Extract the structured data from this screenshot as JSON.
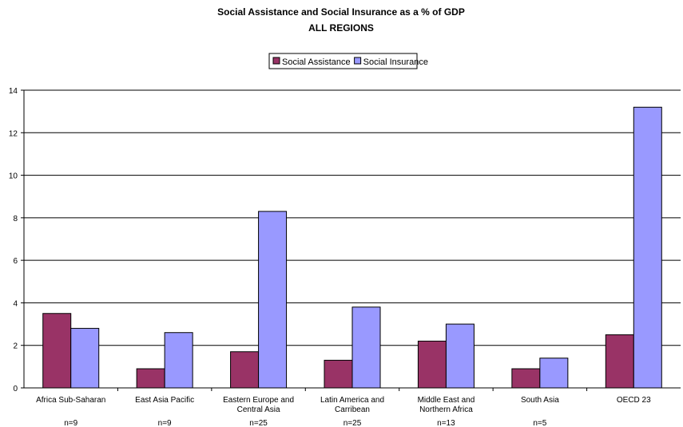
{
  "chart_data": {
    "type": "bar",
    "title": "Social Assistance and Social Insurance as a % of GDP",
    "subtitle": "ALL REGIONS",
    "categories": [
      [
        "Africa Sub-Saharan"
      ],
      [
        "East Asia Pacific"
      ],
      [
        "Eastern Europe and",
        "Central Asia"
      ],
      [
        "Latin America and",
        "Carribean"
      ],
      [
        "Middle East and",
        "Northern Africa"
      ],
      [
        "South Asia"
      ],
      [
        "OECD 23"
      ]
    ],
    "sample_sizes": [
      "n=9",
      "n=9",
      "n=25",
      "n=25",
      "n=13",
      "n=5",
      ""
    ],
    "series": [
      {
        "name": "Social Assistance",
        "color": "#993366",
        "values": [
          3.5,
          0.9,
          1.7,
          1.3,
          2.2,
          0.9,
          2.5
        ]
      },
      {
        "name": "Social Insurance",
        "color": "#9999ff",
        "values": [
          2.8,
          2.6,
          8.3,
          3.8,
          3.0,
          1.4,
          13.2
        ]
      }
    ],
    "ylim": [
      0,
      14
    ],
    "yticks": [
      0,
      2,
      4,
      6,
      8,
      10,
      12,
      14
    ],
    "grid": true,
    "legend_position": "top"
  }
}
